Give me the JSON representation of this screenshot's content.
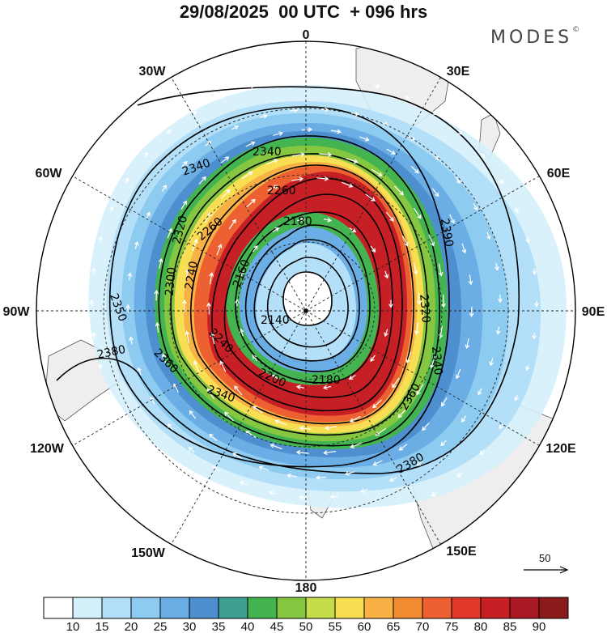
{
  "header": {
    "title": "29/08/2025  00 UTC  + 096 hrs",
    "brand": "MODES",
    "brand_mark": "©"
  },
  "map": {
    "projection": "south polar stereographic",
    "longitude_labels": [
      "0",
      "30E",
      "60E",
      "90E",
      "120E",
      "150E",
      "180",
      "150W",
      "120W",
      "90W",
      "60W",
      "30W"
    ],
    "contour_labels": [
      "2140",
      "2160",
      "2180",
      "2200",
      "2240",
      "2260",
      "2300",
      "2320",
      "2340",
      "2350",
      "2360",
      "2380",
      "2390"
    ],
    "contour_color": "#000000",
    "land_color": "#eeeeee"
  },
  "wind_reference": {
    "label": "50",
    "vector_color": "#ffffff"
  },
  "colorbar": {
    "labels": [
      "10",
      "15",
      "20",
      "25",
      "30",
      "35",
      "40",
      "45",
      "50",
      "55",
      "60",
      "65",
      "70",
      "75",
      "80",
      "85",
      "90"
    ],
    "colors": [
      "#ffffff",
      "#d4f0fb",
      "#b3dff8",
      "#8ecbf0",
      "#6aaee5",
      "#4d8fcf",
      "#3d9f8f",
      "#44b451",
      "#86c741",
      "#c5dc4b",
      "#f7de53",
      "#f7b145",
      "#f28b31",
      "#ec6031",
      "#df3729",
      "#c61f25",
      "#a81923",
      "#8b1a1a"
    ]
  }
}
